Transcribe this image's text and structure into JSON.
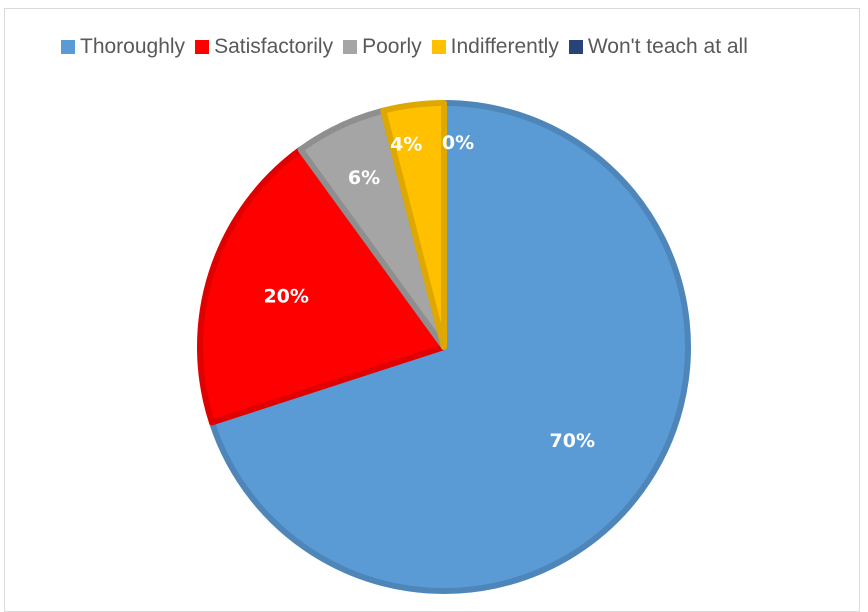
{
  "chart_data": {
    "type": "pie",
    "title": "",
    "legend_position": "top",
    "categories": [
      "Thoroughly",
      "Satisfactorily",
      "Poorly",
      "Indifferently",
      "Won't teach at all"
    ],
    "values": [
      70,
      20,
      6,
      4,
      0
    ],
    "labels": [
      "70%",
      "20%",
      "6%",
      "4%",
      "0%"
    ],
    "colors": [
      "#5b9bd5",
      "#ff0000",
      "#a5a5a5",
      "#ffc000",
      "#264478"
    ],
    "edge_colors": [
      "#4e86ba",
      "#e00000",
      "#8f8f8f",
      "#dfa800",
      "#1d3660"
    ]
  }
}
